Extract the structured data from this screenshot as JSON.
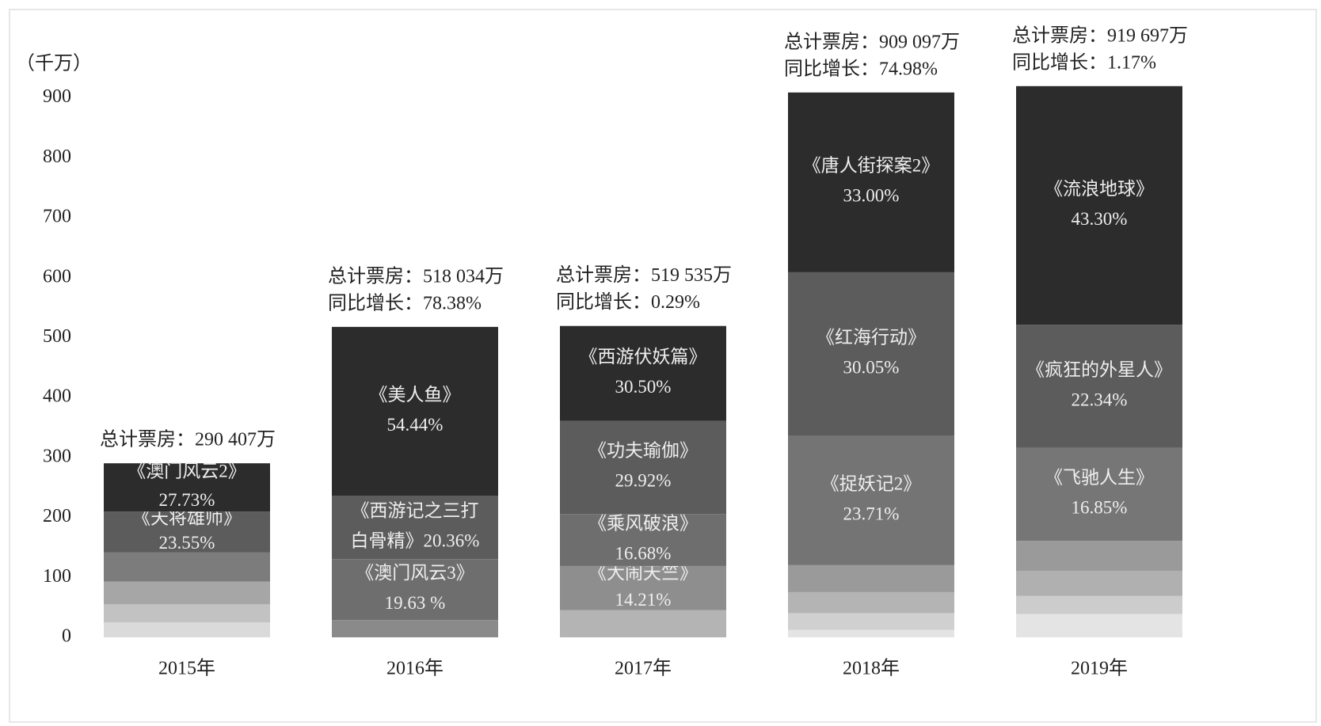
{
  "chart_data": {
    "type": "stacked_bar",
    "ylabel": "（千万）",
    "categories": [
      "2015年",
      "2016年",
      "2017年",
      "2018年",
      "2019年"
    ],
    "ylim": [
      0,
      1000
    ],
    "yticks": [
      0,
      100,
      200,
      300,
      400,
      500,
      600,
      700,
      800,
      900
    ],
    "stacks": [
      {
        "annotation": [
          "总计票房：290 407万"
        ],
        "segments": [
          {
            "value": 25,
            "color": "#dadada"
          },
          {
            "value": 30,
            "color": "#c2c2c2"
          },
          {
            "value": 38,
            "color": "#a6a6a6"
          },
          {
            "value": 48.5,
            "color": "#7c7c7c"
          },
          {
            "value": 68.4,
            "color": "#5c5c5c",
            "labels": [
              "《天将雄师》",
              "23.55%"
            ]
          },
          {
            "value": 80.5,
            "color": "#2c2c2c",
            "labels": [
              "《澳门风云2》",
              "27.73%"
            ]
          }
        ]
      },
      {
        "annotation": [
          "总计票房：518 034万",
          "同比增长：78.38%"
        ],
        "segments": [
          {
            "value": 28.8,
            "color": "#8a8a8a"
          },
          {
            "value": 101.7,
            "color": "#6e6e6e",
            "labels": [
              "《澳门风云3》",
              "19.63 %"
            ]
          },
          {
            "value": 105.5,
            "color": "#5c5c5c",
            "labels": [
              "《西游记之三打",
              "白骨精》20.36%"
            ]
          },
          {
            "value": 282,
            "color": "#2c2c2c",
            "labels": [
              "《美人鱼》",
              "54.44%"
            ]
          }
        ]
      },
      {
        "annotation": [
          "总计票房：519 535万",
          "同比增长：0.29%"
        ],
        "segments": [
          {
            "value": 45.2,
            "color": "#b4b4b4"
          },
          {
            "value": 73.8,
            "color": "#8e8e8e",
            "labels": [
              "《大闹天竺》",
              "14.21%"
            ]
          },
          {
            "value": 86.7,
            "color": "#6e6e6e",
            "labels": [
              "《乘风破浪》",
              "16.68%"
            ]
          },
          {
            "value": 155.4,
            "color": "#5c5c5c",
            "labels": [
              "《功夫瑜伽》",
              "29.92%"
            ]
          },
          {
            "value": 158.4,
            "color": "#2c2c2c",
            "labels": [
              "《西游伏妖篇》",
              "30.50%"
            ]
          }
        ]
      },
      {
        "annotation": [
          "总计票房：909 097万",
          "同比增长：74.98%"
        ],
        "segments": [
          {
            "value": 12.4,
            "color": "#e4e4e4"
          },
          {
            "value": 28,
            "color": "#d0d0d0"
          },
          {
            "value": 35,
            "color": "#b4b4b4"
          },
          {
            "value": 45,
            "color": "#9a9a9a"
          },
          {
            "value": 215.5,
            "color": "#747474",
            "labels": [
              "《捉妖记2》",
              "23.71%"
            ]
          },
          {
            "value": 273.2,
            "color": "#5c5c5c",
            "labels": [
              "《红海行动》",
              "30.05%"
            ]
          },
          {
            "value": 300,
            "color": "#2c2c2c",
            "labels": [
              "《唐人街探案2》",
              "33.00%"
            ]
          }
        ]
      },
      {
        "annotation": [
          "总计票房：919 697万",
          "同比增长：1.17%"
        ],
        "segments": [
          {
            "value": 39,
            "color": "#e4e4e4"
          },
          {
            "value": 30,
            "color": "#cccccc"
          },
          {
            "value": 42,
            "color": "#b0b0b0"
          },
          {
            "value": 50,
            "color": "#9a9a9a"
          },
          {
            "value": 155,
            "color": "#767676",
            "labels": [
              "《飞驰人生》",
              "16.85%"
            ]
          },
          {
            "value": 205.5,
            "color": "#5c5c5c",
            "labels": [
              "《疯狂的外星人》",
              "22.34%"
            ]
          },
          {
            "value": 398.2,
            "color": "#2c2c2c",
            "labels": [
              "《流浪地球》",
              "43.30%"
            ]
          }
        ]
      }
    ]
  }
}
